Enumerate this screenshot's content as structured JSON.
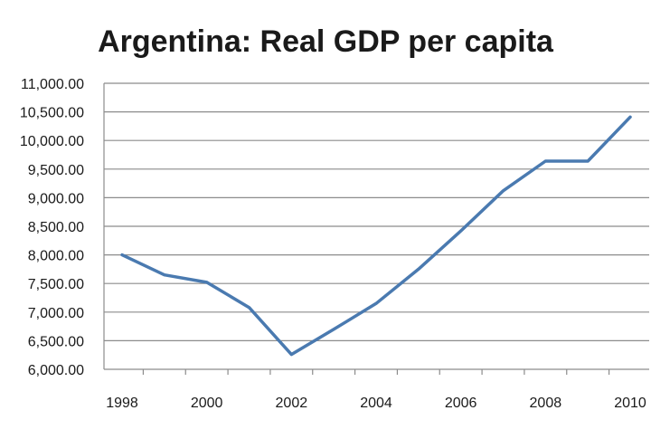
{
  "chart_data": {
    "type": "line",
    "title": "Argentina: Real GDP per capita",
    "xlabel": "",
    "ylabel": "",
    "x": [
      1998,
      1999,
      2000,
      2001,
      2002,
      2003,
      2004,
      2005,
      2006,
      2007,
      2008,
      2009,
      2010
    ],
    "x_tick_labels": [
      "1998",
      "2000",
      "2002",
      "2004",
      "2006",
      "2008",
      "2010"
    ],
    "y_tick_labels": [
      "6,000.00",
      "6,500.00",
      "7,000.00",
      "7,500.00",
      "8,000.00",
      "8,500.00",
      "9,000.00",
      "9,500.00",
      "10,000.00",
      "10,500.00",
      "11,000.00"
    ],
    "ylim": [
      6000,
      11000
    ],
    "series": [
      {
        "values": [
          8000,
          7650,
          7520,
          7080,
          6260,
          6700,
          7150,
          7750,
          8420,
          9120,
          9640,
          9640,
          10410
        ],
        "color": "#4a7ab0"
      }
    ],
    "grid": true,
    "legend": "none"
  }
}
